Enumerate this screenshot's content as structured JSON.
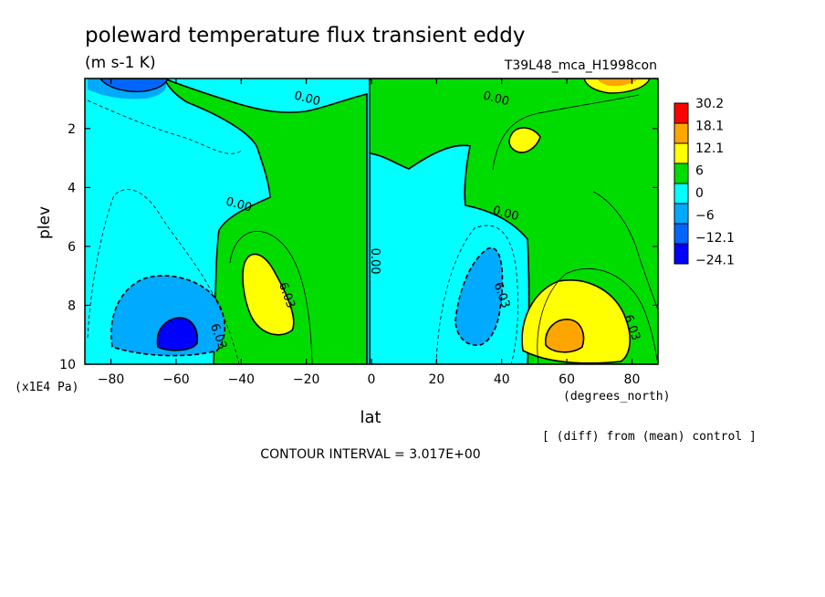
{
  "chart_data": {
    "type": "heatmap",
    "title": "poleward temperature flux transient eddy",
    "units": "(m s-1 K)",
    "experiment": "T39L48_mca_H1998con",
    "xlabel": "lat",
    "xunits": "(degrees_north)",
    "ylabel": "plev",
    "yunits": "(x1E4 Pa)",
    "x_ticks": [
      -80,
      -60,
      -40,
      -20,
      0,
      20,
      40,
      60,
      80
    ],
    "x_tick_labels": [
      "−80",
      "−60",
      "−40",
      "−20",
      "0",
      "20",
      "40",
      "60",
      "80"
    ],
    "y_ticks": [
      2,
      4,
      6,
      8,
      10
    ],
    "xlim": [
      -88,
      88
    ],
    "ylim": [
      10,
      0.3
    ],
    "legend": {
      "placement": "right",
      "levels": [
        "30.2",
        "18.1",
        "12.1",
        "6",
        "0",
        "−6",
        "−12.1",
        "−24.1"
      ],
      "colors": [
        "#ff0000",
        "#ffa500",
        "#ffff00",
        "#00dc00",
        "#00ffff",
        "#00aaff",
        "#0066ff",
        "#0000ff"
      ]
    },
    "contour_labels": [
      {
        "text": "0.00",
        "lat": -20,
        "plev": 1.1
      },
      {
        "text": "0.00",
        "lat": 38,
        "plev": 1.1
      },
      {
        "text": "0.00",
        "lat": -41,
        "plev": 4.7
      },
      {
        "text": "0.00",
        "lat": 41,
        "plev": 5.0
      },
      {
        "text": "0.00",
        "lat": 0,
        "plev": 6.5
      },
      {
        "text": "6.03",
        "lat": -27,
        "plev": 7.7
      },
      {
        "text": "6.03",
        "lat": 39,
        "plev": 7.7
      },
      {
        "text": "6.03",
        "lat": -48,
        "plev": 9.1
      },
      {
        "text": "6.03",
        "lat": 79,
        "plev": 8.8
      }
    ],
    "extrema": [
      {
        "lat": -60,
        "plev": 9.0,
        "band": "−24.1"
      },
      {
        "lat": -70,
        "plev": 0.5,
        "band": "−12.1"
      },
      {
        "lat": 60,
        "plev": 9.0,
        "band": "12.1"
      },
      {
        "lat": 70,
        "plev": 0.5,
        "band": "12.1"
      },
      {
        "lat": 47,
        "plev": 2.3,
        "band": "6"
      },
      {
        "lat": -33,
        "plev": 7.7,
        "band": "6"
      },
      {
        "lat": 33,
        "plev": 7.7,
        "band": "−6"
      }
    ],
    "note": "[ (diff) from (mean) control ]",
    "contour_interval": "CONTOUR INTERVAL = 3.017E+00"
  }
}
